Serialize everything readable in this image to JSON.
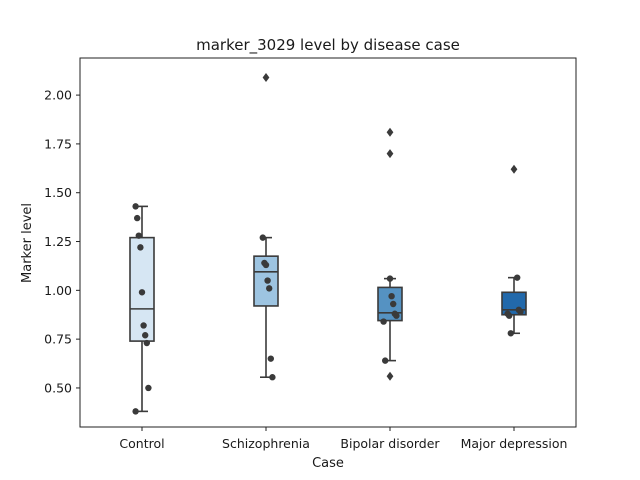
{
  "chart_data": {
    "type": "box",
    "title": "marker_3029 level by disease case",
    "xlabel": "Case",
    "ylabel": "Marker level",
    "ylim": [
      0.3,
      2.19
    ],
    "yticks": [
      0.5,
      0.75,
      1.0,
      1.25,
      1.5,
      1.75,
      2.0
    ],
    "ytick_labels": [
      "0.50",
      "0.75",
      "1.00",
      "1.25",
      "1.50",
      "1.75",
      "2.00"
    ],
    "categories": [
      "Control",
      "Schizophrenia",
      "Bipolar disorder",
      "Major depression"
    ],
    "colors": [
      "#d6e6f3",
      "#9dc4e1",
      "#5592c2",
      "#2269ab"
    ],
    "groups": [
      {
        "name": "Control",
        "q1": 0.74,
        "median": 0.905,
        "q3": 1.27,
        "whisker_low": 0.38,
        "whisker_high": 1.43,
        "outliers": [],
        "points": [
          1.43,
          1.37,
          1.28,
          1.22,
          0.99,
          0.82,
          0.77,
          0.73,
          0.5,
          0.38
        ]
      },
      {
        "name": "Schizophrenia",
        "q1": 0.92,
        "median": 1.095,
        "q3": 1.175,
        "whisker_low": 0.555,
        "whisker_high": 1.27,
        "outliers": [
          2.09
        ],
        "points": [
          1.27,
          1.14,
          1.13,
          1.05,
          1.01,
          0.65,
          0.555
        ]
      },
      {
        "name": "Bipolar disorder",
        "q1": 0.845,
        "median": 0.885,
        "q3": 1.015,
        "whisker_low": 0.64,
        "whisker_high": 1.06,
        "outliers": [
          1.81,
          1.7,
          0.56
        ],
        "points": [
          1.06,
          0.97,
          0.93,
          0.88,
          0.87,
          0.84,
          0.64
        ]
      },
      {
        "name": "Major depression",
        "q1": 0.875,
        "median": 0.9,
        "q3": 0.99,
        "whisker_low": 0.78,
        "whisker_high": 1.065,
        "outliers": [
          1.62
        ],
        "points": [
          1.065,
          0.9,
          0.89,
          0.88,
          0.87,
          0.78
        ]
      }
    ]
  }
}
